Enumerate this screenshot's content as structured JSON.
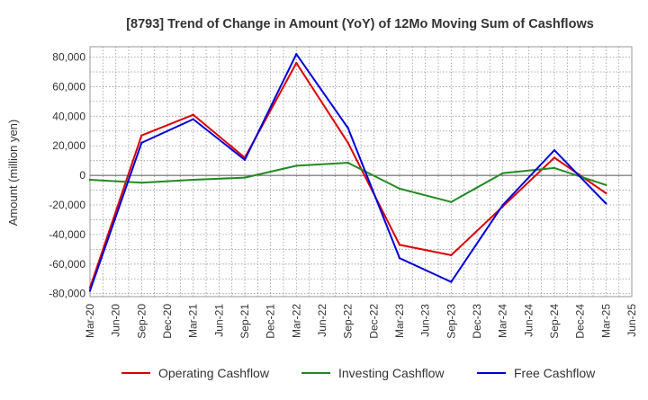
{
  "chart_data": {
    "type": "line",
    "title": "[8793]  Trend of Change in Amount (YoY) of 12Mo Moving Sum of Cashflows",
    "xlabel": "",
    "ylabel": "Amount (million yen)",
    "ylim": [
      -82000,
      87000
    ],
    "yticks": [
      80000,
      60000,
      40000,
      20000,
      0,
      -20000,
      -40000,
      -60000,
      -80000
    ],
    "ytick_labels": [
      "80,000",
      "60,000",
      "40,000",
      "20,000",
      "0",
      "-20,000",
      "-40,000",
      "-60,000",
      "-80,000"
    ],
    "categories": [
      "Mar-20",
      "Jun-20",
      "Sep-20",
      "Dec-20",
      "Mar-21",
      "Jun-21",
      "Sep-21",
      "Dec-21",
      "Mar-22",
      "Jun-22",
      "Sep-22",
      "Dec-22",
      "Mar-23",
      "Jun-23",
      "Sep-23",
      "Dec-23",
      "Mar-24",
      "Jun-24",
      "Sep-24",
      "Dec-24",
      "Mar-25",
      "Jun-25"
    ],
    "grid": true,
    "legend_position": "bottom",
    "series": [
      {
        "name": "Operating Cashflow",
        "color": "#dd0000",
        "values": [
          -76000,
          null,
          27000,
          null,
          41000,
          null,
          12000,
          null,
          76000,
          null,
          22000,
          null,
          -47000,
          null,
          -54000,
          null,
          -21000,
          null,
          12000,
          null,
          -12000,
          null
        ]
      },
      {
        "name": "Investing Cashflow",
        "color": "#228B22",
        "values": [
          -3000,
          null,
          -5000,
          null,
          -3000,
          null,
          -1500,
          null,
          6500,
          null,
          8500,
          null,
          -9000,
          null,
          -18000,
          null,
          1500,
          null,
          5000,
          null,
          -6500,
          null
        ]
      },
      {
        "name": "Free Cashflow",
        "color": "#0000dd",
        "values": [
          -78000,
          null,
          22000,
          null,
          38000,
          null,
          10500,
          null,
          82000,
          null,
          32000,
          null,
          -56000,
          null,
          -72000,
          null,
          -20000,
          null,
          17000,
          null,
          -19000,
          null
        ]
      }
    ]
  }
}
